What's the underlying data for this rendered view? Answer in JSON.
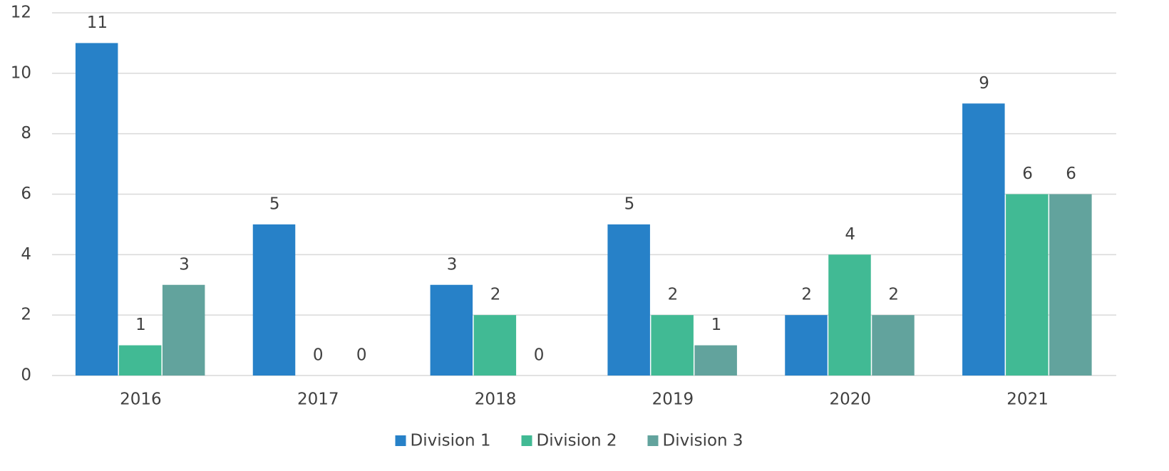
{
  "chart_data": {
    "type": "bar",
    "categories": [
      "2016",
      "2017",
      "2018",
      "2019",
      "2020",
      "2021"
    ],
    "series": [
      {
        "name": "Division 1",
        "color": "#2781c8",
        "values": [
          11,
          5,
          3,
          5,
          2,
          9
        ]
      },
      {
        "name": "Division 2",
        "color": "#41ba94",
        "values": [
          1,
          0,
          2,
          2,
          4,
          6
        ]
      },
      {
        "name": "Division 3",
        "color": "#62a39d",
        "values": [
          3,
          0,
          0,
          1,
          2,
          6
        ]
      }
    ],
    "ylim": [
      0,
      12
    ],
    "yticks": [
      0,
      2,
      4,
      6,
      8,
      10,
      12
    ],
    "grid": true,
    "legend": "bottom"
  }
}
